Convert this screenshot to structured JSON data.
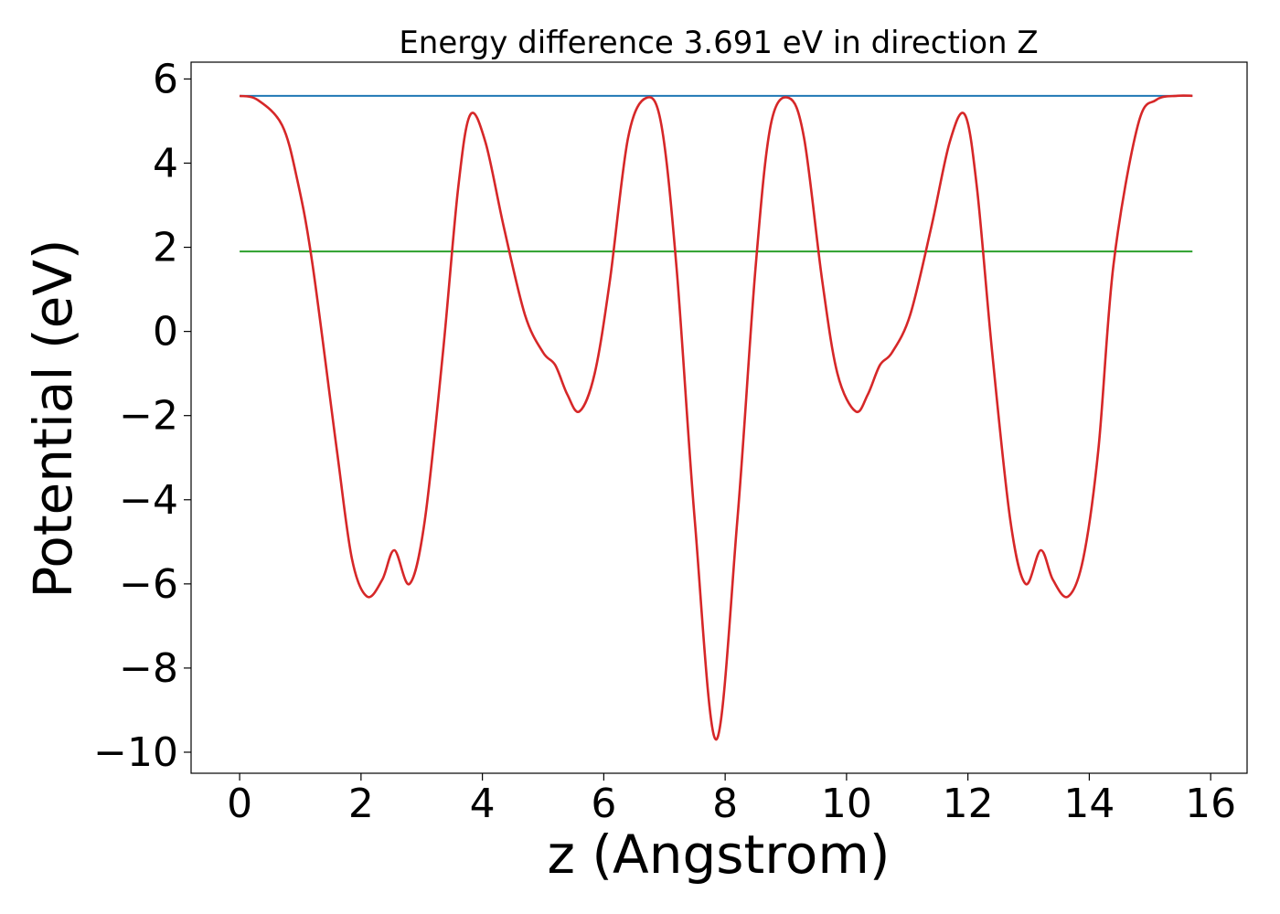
{
  "chart_data": {
    "type": "line",
    "title": "Energy difference 3.691 eV in direction Z",
    "xlabel": "z (Angstrom)",
    "ylabel": "Potential (eV)",
    "xlim": [
      -0.8,
      16.6
    ],
    "ylim": [
      -10.5,
      6.4
    ],
    "xticks": [
      0,
      2,
      4,
      6,
      8,
      10,
      12,
      14,
      16
    ],
    "yticks": [
      6,
      4,
      2,
      0,
      -2,
      -4,
      -6,
      -8,
      -10
    ],
    "xtick_labels": [
      "0",
      "2",
      "4",
      "6",
      "8",
      "10",
      "12",
      "14",
      "16"
    ],
    "ytick_labels": [
      "6",
      "4",
      "2",
      "0",
      "−2",
      "−4",
      "−6",
      "−8",
      "−10"
    ],
    "grid": false,
    "series": [
      {
        "color": "#d62728",
        "x": [
          0,
          0.3,
          0.7,
          0.95,
          1.2,
          1.6,
          1.85,
          2.1,
          2.35,
          2.55,
          2.8,
          3.05,
          3.35,
          3.6,
          3.8,
          4.05,
          4.35,
          4.7,
          5.0,
          5.2,
          5.4,
          5.6,
          5.85,
          6.1,
          6.4,
          6.7,
          6.95,
          7.2,
          7.5,
          7.85,
          8.2,
          8.5,
          8.75,
          9.05,
          9.3,
          9.6,
          9.85,
          10.15,
          10.35,
          10.55,
          10.75,
          11.05,
          11.4,
          11.7,
          11.95,
          12.15,
          12.4,
          12.7,
          12.95,
          13.2,
          13.4,
          13.65,
          13.9,
          14.15,
          14.4,
          14.8,
          15.1,
          15.45,
          15.7
        ],
        "y": [
          5.6,
          5.5,
          4.9,
          3.6,
          1.6,
          -2.8,
          -5.4,
          -6.3,
          -5.9,
          -5.2,
          -6.0,
          -4.5,
          -0.5,
          3.4,
          5.15,
          4.5,
          2.5,
          0.4,
          -0.5,
          -0.8,
          -1.5,
          -1.9,
          -1.0,
          1.2,
          4.6,
          5.55,
          4.9,
          1.5,
          -4.5,
          -9.7,
          -4.5,
          1.5,
          4.9,
          5.55,
          4.6,
          1.2,
          -1.0,
          -1.9,
          -1.5,
          -0.8,
          -0.5,
          0.4,
          2.5,
          4.5,
          5.15,
          3.4,
          -0.5,
          -4.5,
          -6.0,
          -5.2,
          -5.9,
          -6.3,
          -5.4,
          -2.8,
          1.6,
          4.9,
          5.5,
          5.6,
          5.6
        ]
      },
      {
        "color": "#1f77b4",
        "x": [
          0,
          15.7
        ],
        "y": [
          5.6,
          5.6
        ]
      },
      {
        "color": "#2ca02c",
        "x": [
          0,
          15.7
        ],
        "y": [
          1.9,
          1.9
        ]
      }
    ]
  }
}
